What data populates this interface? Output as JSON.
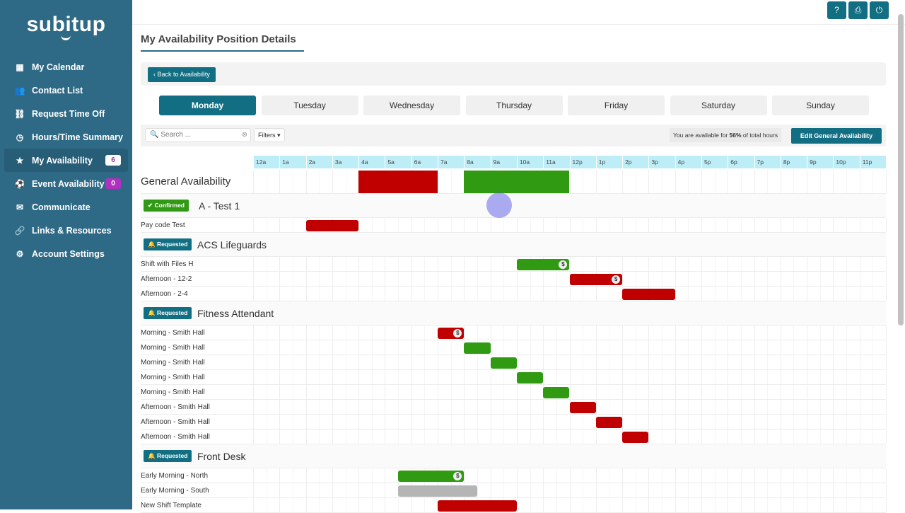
{
  "brand": "subitup",
  "sidebar": {
    "items": [
      {
        "label": "My Calendar",
        "icon": "calendar-icon",
        "glyph": "▦"
      },
      {
        "label": "Contact List",
        "icon": "users-icon",
        "glyph": "👥"
      },
      {
        "label": "Request Time Off",
        "icon": "unlink-icon",
        "glyph": "⛓"
      },
      {
        "label": "Hours/Time Summary",
        "icon": "clock-icon",
        "glyph": "◷"
      },
      {
        "label": "My Availability",
        "icon": "star-icon",
        "glyph": "★",
        "badge": "6",
        "active": true
      },
      {
        "label": "Event Availability",
        "icon": "soccer-ball-icon",
        "glyph": "⚽",
        "badge": "0"
      },
      {
        "label": "Communicate",
        "icon": "envelope-icon",
        "glyph": "✉"
      },
      {
        "label": "Links & Resources",
        "icon": "link-icon",
        "glyph": "🔗"
      },
      {
        "label": "Account Settings",
        "icon": "gear-icon",
        "glyph": "⚙"
      }
    ]
  },
  "topbar": {
    "help": "?",
    "print": "⎙",
    "power": "⏻"
  },
  "page": {
    "title": "My Availability Position Details",
    "back": "Back to Availability"
  },
  "days": [
    "Monday",
    "Tuesday",
    "Wednesday",
    "Thursday",
    "Friday",
    "Saturday",
    "Sunday"
  ],
  "active_day": "Monday",
  "search": {
    "placeholder": "Search ..."
  },
  "filters": "Filters",
  "availability": {
    "prefix": "You are available for ",
    "percent": "56%",
    "suffix": " of total hours"
  },
  "edit_button": "Edit General Availability",
  "hours": [
    "12a",
    "1a",
    "2a",
    "3a",
    "4a",
    "5a",
    "6a",
    "7a",
    "8a",
    "9a",
    "10a",
    "11a",
    "12p",
    "1p",
    "2p",
    "3p",
    "4p",
    "5p",
    "6p",
    "7p",
    "8p",
    "9p",
    "10p",
    "11p"
  ],
  "colors": {
    "available": "#2f9a12",
    "unavailable": "#c00000",
    "neutral": "#b5b5b5",
    "confirmed": "#2f9a12",
    "requested": "#126e82"
  },
  "rows": [
    {
      "type": "general",
      "label": "General Availability",
      "bars": [
        {
          "start": 4,
          "end": 7,
          "color": "unavailable"
        },
        {
          "start": 8,
          "end": 12,
          "color": "available"
        }
      ]
    },
    {
      "type": "group",
      "status": "Confirmed",
      "name": "A - Test 1"
    },
    {
      "type": "shift",
      "label": "Pay code Test",
      "bars": [
        {
          "start": 2,
          "end": 4,
          "color": "unavailable"
        }
      ]
    },
    {
      "type": "group",
      "status": "Requested",
      "name": "ACS Lifeguards"
    },
    {
      "type": "shift",
      "label": "Shift with Files H",
      "bars": [
        {
          "start": 10,
          "end": 12,
          "color": "available",
          "dollar": "$"
        }
      ]
    },
    {
      "type": "shift",
      "label": "Afternoon - 12-2",
      "bars": [
        {
          "start": 12,
          "end": 14,
          "color": "unavailable",
          "dollar": "$"
        }
      ]
    },
    {
      "type": "shift",
      "label": "Afternoon - 2-4",
      "bars": [
        {
          "start": 14,
          "end": 16,
          "color": "unavailable"
        }
      ]
    },
    {
      "type": "group",
      "status": "Requested",
      "name": "Fitness Attendant"
    },
    {
      "type": "shift",
      "label": "Morning - Smith Hall",
      "bars": [
        {
          "start": 7,
          "end": 8,
          "color": "unavailable",
          "dollar": "$"
        }
      ]
    },
    {
      "type": "shift",
      "label": "Morning - Smith Hall",
      "bars": [
        {
          "start": 8,
          "end": 9,
          "color": "available"
        }
      ]
    },
    {
      "type": "shift",
      "label": "Morning - Smith Hall",
      "bars": [
        {
          "start": 9,
          "end": 10,
          "color": "available"
        }
      ]
    },
    {
      "type": "shift",
      "label": "Morning - Smith Hall",
      "bars": [
        {
          "start": 10,
          "end": 11,
          "color": "available"
        }
      ]
    },
    {
      "type": "shift",
      "label": "Morning - Smith Hall",
      "bars": [
        {
          "start": 11,
          "end": 12,
          "color": "available"
        }
      ]
    },
    {
      "type": "shift",
      "label": "Afternoon - Smith Hall",
      "bars": [
        {
          "start": 12,
          "end": 13,
          "color": "unavailable"
        }
      ]
    },
    {
      "type": "shift",
      "label": "Afternoon - Smith Hall",
      "bars": [
        {
          "start": 13,
          "end": 14,
          "color": "unavailable"
        }
      ]
    },
    {
      "type": "shift",
      "label": "Afternoon - Smith Hall",
      "bars": [
        {
          "start": 14,
          "end": 15,
          "color": "unavailable"
        }
      ]
    },
    {
      "type": "group",
      "status": "Requested",
      "name": "Front Desk"
    },
    {
      "type": "shift",
      "label": "Early Morning - North",
      "bars": [
        {
          "start": 5.5,
          "end": 8,
          "color": "available",
          "dollar": "$"
        }
      ]
    },
    {
      "type": "shift",
      "label": "Early Morning - South",
      "bars": [
        {
          "start": 5.5,
          "end": 8.5,
          "color": "neutral"
        }
      ]
    },
    {
      "type": "shift",
      "label": "New Shift Template",
      "bars": [
        {
          "start": 7,
          "end": 10,
          "color": "unavailable"
        }
      ]
    }
  ]
}
